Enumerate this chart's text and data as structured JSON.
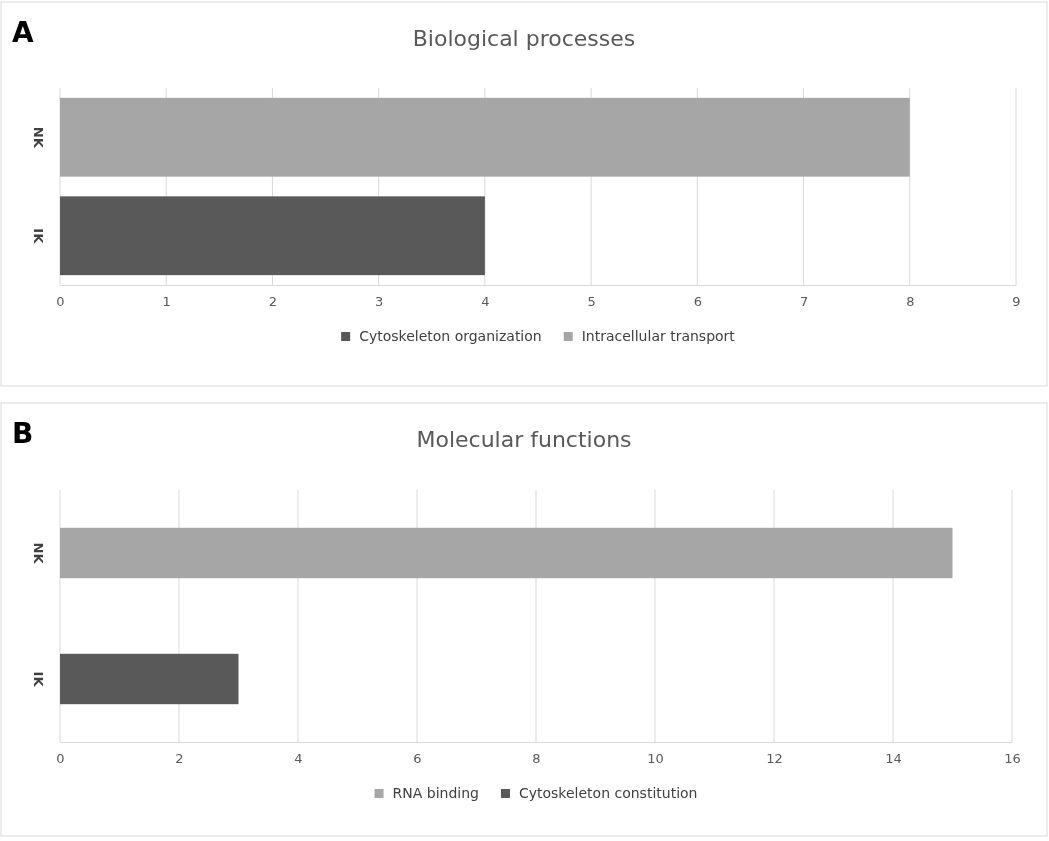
{
  "chart_data": [
    {
      "type": "bar",
      "title": "Biological processes",
      "annotations": [
        "A"
      ],
      "orientation": "horizontal",
      "stacked": true,
      "categories": [
        "NK",
        "IK"
      ],
      "series": [
        {
          "name": "Cytoskeleton organization",
          "color": "#595959",
          "values": [
            null,
            4
          ]
        },
        {
          "name": "Intracellular transport",
          "color": "#a6a6a6",
          "values": [
            8,
            null
          ]
        }
      ],
      "xlim": [
        0,
        9
      ],
      "xticks": [
        0,
        1,
        2,
        3,
        4,
        5,
        6,
        7,
        8,
        9
      ],
      "grid": "x",
      "legend": "bottom"
    },
    {
      "type": "bar",
      "title": "Molecular functions",
      "annotations": [
        "B"
      ],
      "orientation": "horizontal",
      "stacked": true,
      "categories": [
        "NK",
        "IK"
      ],
      "series": [
        {
          "name": "RNA binding",
          "color": "#a6a6a6",
          "values": [
            15,
            null
          ]
        },
        {
          "name": "Cytoskeleton constitution",
          "color": "#595959",
          "values": [
            null,
            3
          ]
        }
      ],
      "xlim": [
        0,
        16
      ],
      "xticks": [
        0,
        2,
        4,
        6,
        8,
        10,
        12,
        14,
        16
      ],
      "grid": "x",
      "legend": "bottom"
    }
  ]
}
